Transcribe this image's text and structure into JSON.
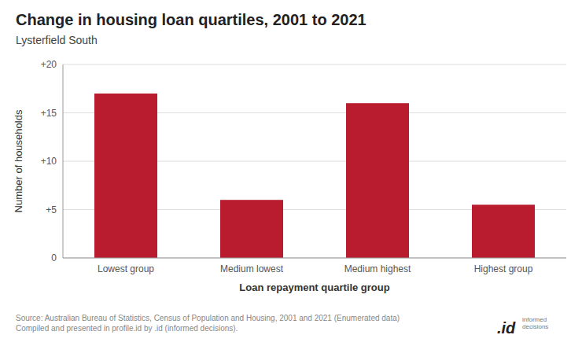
{
  "chart_data": {
    "type": "bar",
    "title": "Change in housing loan quartiles, 2001 to 2021",
    "subtitle": "Lysterfield South",
    "categories": [
      "Lowest group",
      "Medium lowest",
      "Medium highest",
      "Highest group"
    ],
    "values": [
      17,
      6,
      16,
      5.5
    ],
    "color": "#B81C2E",
    "xlabel": "Loan repayment quartile group",
    "ylabel": "Number of households",
    "ylim": [
      0,
      20
    ],
    "yticks": [
      0,
      {
        "value": 5,
        "label": "+5"
      },
      {
        "value": 10,
        "label": "+10"
      },
      {
        "value": 15,
        "label": "+15"
      },
      {
        "value": 20,
        "label": "+20"
      }
    ],
    "grid": true,
    "annotations": [
      "Source: Australian Bureau of Statistics, Census of Population and Housing, 2001 and 2021 (Enumerated data)\nCompiled and presented in profile.id by .id (informed decisions).",
      ".id",
      "informed\ndecisions"
    ]
  }
}
